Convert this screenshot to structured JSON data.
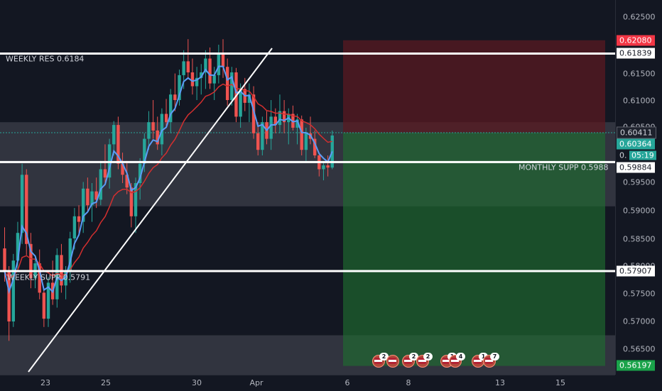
{
  "colors": {
    "background": "#131722",
    "up": "#26a69a",
    "down": "#ef5350",
    "ema_fast": "#5b9cf6",
    "ema_slow": "#d32f2f",
    "zone": "#4a4d57",
    "stop_zone": "#5a1a22",
    "target_zone": "#1f6b2f",
    "level_line": "#ffffff"
  },
  "lines": {
    "weekly_res": "WEEKLY RES 0.6184",
    "monthly_supp": "MONTHLY SUPP 0.5988",
    "weekly_supp": "WEEKLY SUPP 0.5791"
  },
  "price_axis": {
    "ticks": [
      "0.62500",
      "0.61500",
      "0.61000",
      "0.60500",
      "0.59500",
      "0.59000",
      "0.58500",
      "0.58000",
      "0.57500",
      "0.57000",
      "0.56500"
    ],
    "tags": {
      "stop": "0.62080",
      "weekly_res": "0.61839",
      "entry": "0.60411",
      "last_price": "0.60364",
      "countdown": "05:19",
      "countdown_prefix": "0.",
      "monthly_supp": "0.59884",
      "weekly_supp": "0.57907",
      "target": "0.56197"
    }
  },
  "time_axis": {
    "ticks": [
      "23",
      "25",
      "30",
      "Apr",
      "6",
      "8",
      "13",
      "15"
    ]
  },
  "events": [
    {
      "icon": "au-flag-icon",
      "badge": "2"
    },
    {
      "icon": "us-flag-icon",
      "badge": ""
    },
    {
      "icon": "au-flag-icon",
      "badge": "2"
    },
    {
      "icon": "us-flag-icon",
      "badge": "2"
    },
    {
      "icon": "us-flag-icon",
      "badge": "1"
    },
    {
      "icon": "us-flag-icon",
      "badge": "4"
    },
    {
      "icon": "us-flag-icon",
      "badge": "1"
    },
    {
      "icon": "us-flag-icon",
      "badge": "7"
    }
  ],
  "chart_data": {
    "type": "candlestick",
    "symbol_scale": "price",
    "ylim": [
      0.5602,
      0.6305
    ],
    "levels": {
      "weekly_res": 0.6184,
      "monthly_supp": 0.5988,
      "weekly_supp": 0.5791
    },
    "position": {
      "type": "short",
      "entry": 0.60411,
      "stop": 0.6208,
      "target": 0.56197
    },
    "last_price": 0.60364,
    "candles": [
      [
        0.5832,
        0.587,
        0.5772,
        0.579
      ],
      [
        0.579,
        0.58,
        0.5665,
        0.57
      ],
      [
        0.57,
        0.5822,
        0.569,
        0.581
      ],
      [
        0.581,
        0.588,
        0.579,
        0.586
      ],
      [
        0.586,
        0.5985,
        0.584,
        0.5965
      ],
      [
        0.5965,
        0.5975,
        0.582,
        0.584
      ],
      [
        0.584,
        0.586,
        0.576,
        0.5778
      ],
      [
        0.5778,
        0.582,
        0.576,
        0.5805
      ],
      [
        0.5805,
        0.583,
        0.574,
        0.5752
      ],
      [
        0.5752,
        0.576,
        0.569,
        0.5705
      ],
      [
        0.5705,
        0.578,
        0.569,
        0.577
      ],
      [
        0.577,
        0.581,
        0.573,
        0.574
      ],
      [
        0.574,
        0.5832,
        0.5725,
        0.582
      ],
      [
        0.582,
        0.584,
        0.5752,
        0.5765
      ],
      [
        0.5765,
        0.58,
        0.574,
        0.579
      ],
      [
        0.579,
        0.5862,
        0.577,
        0.585
      ],
      [
        0.585,
        0.5905,
        0.583,
        0.589
      ],
      [
        0.589,
        0.591,
        0.586,
        0.588
      ],
      [
        0.588,
        0.5952,
        0.586,
        0.594
      ],
      [
        0.594,
        0.596,
        0.59,
        0.591
      ],
      [
        0.591,
        0.595,
        0.588,
        0.5935
      ],
      [
        0.5935,
        0.596,
        0.5905,
        0.592
      ],
      [
        0.592,
        0.599,
        0.591,
        0.5975
      ],
      [
        0.5975,
        0.602,
        0.595,
        0.596
      ],
      [
        0.596,
        0.603,
        0.594,
        0.602
      ],
      [
        0.602,
        0.6062,
        0.6,
        0.6055
      ],
      [
        0.6055,
        0.607,
        0.5975,
        0.5985
      ],
      [
        0.5985,
        0.6005,
        0.595,
        0.5965
      ],
      [
        0.5965,
        0.599,
        0.593,
        0.5942
      ],
      [
        0.5942,
        0.595,
        0.587,
        0.589
      ],
      [
        0.589,
        0.596,
        0.586,
        0.595
      ],
      [
        0.595,
        0.5995,
        0.592,
        0.5985
      ],
      [
        0.5985,
        0.604,
        0.597,
        0.603
      ],
      [
        0.603,
        0.608,
        0.601,
        0.606
      ],
      [
        0.606,
        0.61,
        0.603,
        0.6045
      ],
      [
        0.6045,
        0.607,
        0.601,
        0.602
      ],
      [
        0.602,
        0.6085,
        0.6,
        0.6075
      ],
      [
        0.6075,
        0.6102,
        0.605,
        0.606
      ],
      [
        0.606,
        0.612,
        0.604,
        0.611
      ],
      [
        0.611,
        0.6148,
        0.608,
        0.61
      ],
      [
        0.61,
        0.6155,
        0.609,
        0.6145
      ],
      [
        0.6145,
        0.619,
        0.612,
        0.617
      ],
      [
        0.617,
        0.621,
        0.614,
        0.615
      ],
      [
        0.615,
        0.6175,
        0.611,
        0.6125
      ],
      [
        0.6125,
        0.616,
        0.61,
        0.614
      ],
      [
        0.614,
        0.6165,
        0.611,
        0.615
      ],
      [
        0.615,
        0.619,
        0.612,
        0.6175
      ],
      [
        0.6175,
        0.6195,
        0.612,
        0.613
      ],
      [
        0.613,
        0.616,
        0.61,
        0.6145
      ],
      [
        0.6145,
        0.62,
        0.613,
        0.6185
      ],
      [
        0.6185,
        0.621,
        0.614,
        0.616
      ],
      [
        0.616,
        0.6175,
        0.609,
        0.61
      ],
      [
        0.61,
        0.616,
        0.609,
        0.615
      ],
      [
        0.615,
        0.6158,
        0.606,
        0.607
      ],
      [
        0.607,
        0.613,
        0.605,
        0.612
      ],
      [
        0.612,
        0.614,
        0.608,
        0.6095
      ],
      [
        0.6095,
        0.613,
        0.606,
        0.611
      ],
      [
        0.611,
        0.6125,
        0.603,
        0.604
      ],
      [
        0.604,
        0.606,
        0.6,
        0.601
      ],
      [
        0.601,
        0.607,
        0.6,
        0.606
      ],
      [
        0.606,
        0.608,
        0.602,
        0.603
      ],
      [
        0.603,
        0.61,
        0.601,
        0.607
      ],
      [
        0.607,
        0.6085,
        0.604,
        0.6055
      ],
      [
        0.6055,
        0.611,
        0.604,
        0.608
      ],
      [
        0.608,
        0.61,
        0.604,
        0.606
      ],
      [
        0.606,
        0.6085,
        0.602,
        0.6075
      ],
      [
        0.6075,
        0.609,
        0.6045,
        0.605
      ],
      [
        0.605,
        0.6075,
        0.602,
        0.6065
      ],
      [
        0.6065,
        0.6072,
        0.6,
        0.601
      ],
      [
        0.601,
        0.605,
        0.599,
        0.604
      ],
      [
        0.604,
        0.607,
        0.602,
        0.603
      ],
      [
        0.603,
        0.6045,
        0.5995,
        0.6
      ],
      [
        0.6,
        0.6005,
        0.5962,
        0.5975
      ],
      [
        0.5975,
        0.599,
        0.5955,
        0.5982
      ],
      [
        0.5982,
        0.6,
        0.5962,
        0.5978
      ],
      [
        0.5978,
        0.6045,
        0.5975,
        0.6036
      ]
    ]
  }
}
